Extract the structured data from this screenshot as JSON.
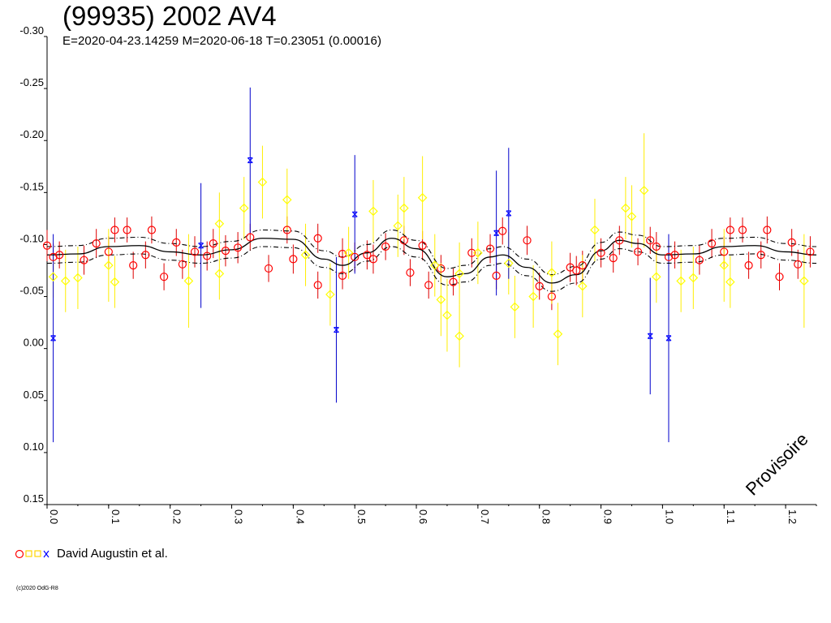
{
  "header": {
    "title": "(99935) 2002 AV4",
    "subtitle": "E=2020-04-23.14259    M=2020-06-18    T=0.23051 (0.00016)"
  },
  "watermark": "Provisoire",
  "legend": {
    "label": "David Augustin et al."
  },
  "footer": {
    "copyright": "(c)2020 OdG-R8"
  },
  "chart_data": {
    "type": "scatter",
    "title": "(99935) 2002 AV4",
    "xlim": [
      0.0,
      1.25
    ],
    "ylim": [
      0.15,
      -0.3
    ],
    "x_ticks": [
      "0.0",
      "0.1",
      "0.2",
      "0.3",
      "0.4",
      "0.5",
      "0.6",
      "0.7",
      "0.8",
      "0.9",
      "1.0",
      "1.1",
      "1.2"
    ],
    "y_ticks": [
      "-0.30",
      "-0.25",
      "-0.20",
      "-0.15",
      "-0.10",
      "-0.05",
      "0.00",
      "0.05",
      "0.10",
      "0.15"
    ],
    "fit_curve": {
      "style": "solid + dash-dot envelope",
      "points": [
        [
          0.0,
          -0.09
        ],
        [
          0.05,
          -0.091
        ],
        [
          0.1,
          -0.098
        ],
        [
          0.15,
          -0.099
        ],
        [
          0.2,
          -0.093
        ],
        [
          0.25,
          -0.09
        ],
        [
          0.3,
          -0.095
        ],
        [
          0.35,
          -0.106
        ],
        [
          0.4,
          -0.105
        ],
        [
          0.45,
          -0.086
        ],
        [
          0.48,
          -0.08
        ],
        [
          0.52,
          -0.092
        ],
        [
          0.56,
          -0.106
        ],
        [
          0.6,
          -0.096
        ],
        [
          0.65,
          -0.069
        ],
        [
          0.68,
          -0.072
        ],
        [
          0.72,
          -0.088
        ],
        [
          0.74,
          -0.09
        ],
        [
          0.78,
          -0.078
        ],
        [
          0.82,
          -0.063
        ],
        [
          0.86,
          -0.071
        ],
        [
          0.9,
          -0.094
        ],
        [
          0.93,
          -0.104
        ],
        [
          0.96,
          -0.101
        ],
        [
          1.0,
          -0.09
        ],
        [
          1.05,
          -0.091
        ],
        [
          1.1,
          -0.098
        ],
        [
          1.15,
          -0.099
        ],
        [
          1.2,
          -0.093
        ],
        [
          1.25,
          -0.09
        ]
      ],
      "envelope": 0.008
    },
    "series": [
      {
        "marker": "circle",
        "color": "#ff0000",
        "errcolor": "#dd0000",
        "points": [
          [
            0.0,
            -0.099,
            0.015
          ],
          [
            0.01,
            -0.088,
            0.013
          ],
          [
            0.02,
            -0.09,
            0.013
          ],
          [
            0.06,
            -0.085,
            0.014
          ],
          [
            0.08,
            -0.101,
            0.014
          ],
          [
            0.1,
            -0.093,
            0.015
          ],
          [
            0.11,
            -0.114,
            0.012
          ],
          [
            0.13,
            -0.114,
            0.012
          ],
          [
            0.14,
            -0.08,
            0.013
          ],
          [
            0.16,
            -0.09,
            0.013
          ],
          [
            0.17,
            -0.114,
            0.013
          ],
          [
            0.19,
            -0.069,
            0.013
          ],
          [
            0.21,
            -0.102,
            0.013
          ],
          [
            0.22,
            -0.081,
            0.014
          ],
          [
            0.24,
            -0.093,
            0.015
          ],
          [
            0.26,
            -0.089,
            0.014
          ],
          [
            0.27,
            -0.101,
            0.014
          ],
          [
            0.29,
            -0.094,
            0.015
          ],
          [
            0.31,
            -0.097,
            0.015
          ],
          [
            0.33,
            -0.107,
            0.013
          ],
          [
            0.36,
            -0.077,
            0.013
          ],
          [
            0.39,
            -0.114,
            0.013
          ],
          [
            0.4,
            -0.086,
            0.014
          ],
          [
            0.44,
            -0.061,
            0.013
          ],
          [
            0.44,
            -0.106,
            0.014
          ],
          [
            0.48,
            -0.07,
            0.013
          ],
          [
            0.48,
            -0.091,
            0.015
          ],
          [
            0.5,
            -0.088,
            0.014
          ],
          [
            0.52,
            -0.09,
            0.014
          ],
          [
            0.53,
            -0.086,
            0.014
          ],
          [
            0.55,
            -0.098,
            0.013
          ],
          [
            0.58,
            -0.104,
            0.014
          ],
          [
            0.59,
            -0.073,
            0.013
          ],
          [
            0.61,
            -0.099,
            0.014
          ],
          [
            0.62,
            -0.061,
            0.013
          ],
          [
            0.64,
            -0.077,
            0.013
          ],
          [
            0.66,
            -0.064,
            0.013
          ],
          [
            0.69,
            -0.092,
            0.014
          ],
          [
            0.72,
            -0.096,
            0.014
          ],
          [
            0.73,
            -0.07,
            0.013
          ],
          [
            0.74,
            -0.113,
            0.013
          ],
          [
            0.78,
            -0.104,
            0.014
          ],
          [
            0.8,
            -0.06,
            0.013
          ],
          [
            0.82,
            -0.05,
            0.013
          ],
          [
            0.85,
            -0.078,
            0.014
          ],
          [
            0.86,
            -0.075,
            0.014
          ],
          [
            0.87,
            -0.08,
            0.014
          ],
          [
            0.9,
            -0.092,
            0.014
          ],
          [
            0.92,
            -0.087,
            0.014
          ],
          [
            0.93,
            -0.104,
            0.014
          ],
          [
            0.96,
            -0.093,
            0.013
          ],
          [
            0.98,
            -0.104,
            0.013
          ],
          [
            0.99,
            -0.098,
            0.014
          ],
          [
            1.01,
            -0.088,
            0.013
          ],
          [
            1.02,
            -0.09,
            0.013
          ],
          [
            1.06,
            -0.085,
            0.014
          ],
          [
            1.08,
            -0.101,
            0.014
          ],
          [
            1.1,
            -0.093,
            0.015
          ],
          [
            1.11,
            -0.114,
            0.012
          ],
          [
            1.13,
            -0.114,
            0.012
          ],
          [
            1.14,
            -0.08,
            0.013
          ],
          [
            1.16,
            -0.09,
            0.013
          ],
          [
            1.17,
            -0.114,
            0.013
          ],
          [
            1.19,
            -0.069,
            0.013
          ],
          [
            1.21,
            -0.102,
            0.013
          ],
          [
            1.22,
            -0.081,
            0.014
          ],
          [
            1.24,
            -0.093,
            0.015
          ]
        ]
      },
      {
        "marker": "diamond",
        "color": "#ffff00",
        "errcolor": "#ffee00",
        "points": [
          [
            0.01,
            -0.069,
            0.02
          ],
          [
            0.03,
            -0.065,
            0.03
          ],
          [
            0.05,
            -0.068,
            0.03
          ],
          [
            0.1,
            -0.08,
            0.035
          ],
          [
            0.11,
            -0.064,
            0.025
          ],
          [
            0.23,
            -0.065,
            0.045
          ],
          [
            0.28,
            -0.072,
            0.025
          ],
          [
            0.28,
            -0.12,
            0.03
          ],
          [
            0.32,
            -0.135,
            0.03
          ],
          [
            0.35,
            -0.16,
            0.035
          ],
          [
            0.39,
            -0.143,
            0.03
          ],
          [
            0.42,
            -0.09,
            0.03
          ],
          [
            0.46,
            -0.052,
            0.03
          ],
          [
            0.49,
            -0.092,
            0.025
          ],
          [
            0.53,
            -0.132,
            0.03
          ],
          [
            0.57,
            -0.118,
            0.03
          ],
          [
            0.58,
            -0.135,
            0.03
          ],
          [
            0.61,
            -0.145,
            0.04
          ],
          [
            0.63,
            -0.08,
            0.03
          ],
          [
            0.64,
            -0.047,
            0.035
          ],
          [
            0.65,
            -0.032,
            0.035
          ],
          [
            0.67,
            -0.072,
            0.03
          ],
          [
            0.67,
            -0.012,
            0.03
          ],
          [
            0.7,
            -0.092,
            0.03
          ],
          [
            0.75,
            -0.082,
            0.03
          ],
          [
            0.76,
            -0.04,
            0.03
          ],
          [
            0.79,
            -0.05,
            0.03
          ],
          [
            0.82,
            -0.073,
            0.03
          ],
          [
            0.83,
            -0.014,
            0.03
          ],
          [
            0.87,
            -0.06,
            0.03
          ],
          [
            0.89,
            -0.114,
            0.03
          ],
          [
            0.94,
            -0.135,
            0.03
          ],
          [
            0.95,
            -0.127,
            0.03
          ],
          [
            0.97,
            -0.152,
            0.055
          ],
          [
            0.99,
            -0.069,
            0.025
          ],
          [
            1.03,
            -0.065,
            0.03
          ],
          [
            1.05,
            -0.068,
            0.03
          ],
          [
            1.1,
            -0.08,
            0.035
          ],
          [
            1.11,
            -0.064,
            0.025
          ],
          [
            1.23,
            -0.065,
            0.045
          ]
        ]
      },
      {
        "marker": "cross",
        "color": "#0000ff",
        "errcolor": "#0000cc",
        "points": [
          [
            0.01,
            -0.01,
            0.1
          ],
          [
            0.25,
            -0.099,
            0.06
          ],
          [
            0.33,
            -0.181,
            0.07
          ],
          [
            0.47,
            -0.018,
            0.07
          ],
          [
            0.5,
            -0.129,
            0.057
          ],
          [
            0.73,
            -0.111,
            0.06
          ],
          [
            0.75,
            -0.13,
            0.063
          ],
          [
            0.98,
            -0.012,
            0.056
          ],
          [
            1.01,
            -0.01,
            0.1
          ]
        ]
      }
    ]
  }
}
